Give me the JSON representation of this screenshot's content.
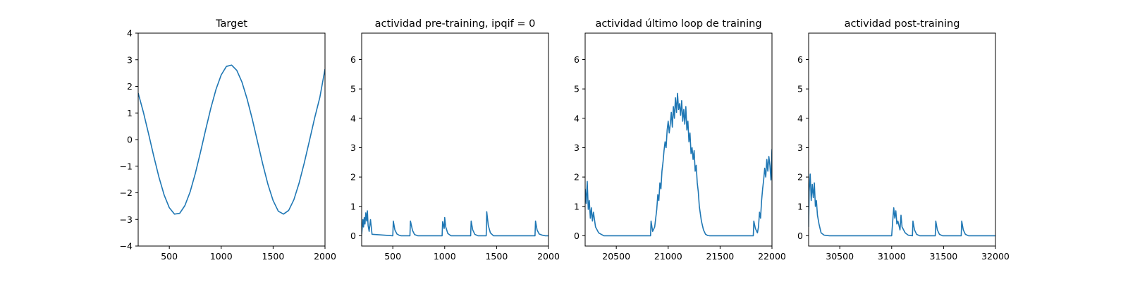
{
  "chart_data": [
    {
      "type": "line",
      "title": "Target",
      "xlabel": "",
      "ylabel": "",
      "xlim": [
        200,
        2000
      ],
      "ylim": [
        -4,
        4
      ],
      "xticks": [
        500,
        1000,
        1500,
        2000
      ],
      "yticks": [
        -4,
        -3,
        -2,
        -1,
        0,
        1,
        2,
        3,
        4
      ],
      "grid": false,
      "color": "#1f77b4",
      "x": [
        200,
        250,
        300,
        350,
        400,
        450,
        500,
        550,
        600,
        650,
        700,
        750,
        800,
        850,
        900,
        950,
        1000,
        1050,
        1100,
        1150,
        1200,
        1250,
        1300,
        1350,
        1400,
        1450,
        1500,
        1550,
        1600,
        1650,
        1700,
        1750,
        1800,
        1850,
        1900,
        1950,
        2000
      ],
      "y": [
        1.75,
        1.03,
        0.22,
        -0.62,
        -1.41,
        -2.08,
        -2.56,
        -2.8,
        -2.77,
        -2.48,
        -1.97,
        -1.28,
        -0.48,
        0.37,
        1.18,
        1.89,
        2.43,
        2.75,
        2.8,
        2.6,
        2.16,
        1.52,
        0.76,
        -0.08,
        -0.92,
        -1.68,
        -2.29,
        -2.69,
        -2.8,
        -2.66,
        -2.26,
        -1.64,
        -0.88,
        -0.04,
        0.81,
        1.58,
        2.65
      ]
    },
    {
      "type": "line",
      "title": "actividad pre-training, ipqif = 0",
      "xlabel": "",
      "ylabel": "",
      "xlim": [
        200,
        2000
      ],
      "ylim": [
        -0.35,
        6.9
      ],
      "xticks": [
        500,
        1000,
        1500,
        2000
      ],
      "yticks": [
        0,
        1,
        2,
        3,
        4,
        5,
        6
      ],
      "grid": false,
      "color": "#1f77b4",
      "x": [
        200,
        212,
        218,
        225,
        232,
        240,
        248,
        255,
        262,
        272,
        285,
        300,
        500,
        505,
        520,
        540,
        560,
        580,
        665,
        670,
        690,
        710,
        740,
        975,
        980,
        995,
        1000,
        1010,
        1030,
        1060,
        1250,
        1255,
        1270,
        1290,
        1320,
        1400,
        1405,
        1420,
        1440,
        1470,
        1870,
        1875,
        1890,
        1910,
        1940,
        1970,
        2000
      ],
      "y": [
        0.05,
        0.55,
        0.3,
        0.62,
        0.4,
        0.78,
        0.5,
        0.85,
        0.35,
        0.15,
        0.55,
        0.05,
        0.0,
        0.5,
        0.2,
        0.06,
        0.02,
        0.0,
        0.0,
        0.5,
        0.18,
        0.04,
        0.0,
        0.0,
        0.48,
        0.25,
        0.62,
        0.3,
        0.08,
        0.0,
        0.0,
        0.5,
        0.2,
        0.05,
        0.0,
        0.0,
        0.82,
        0.35,
        0.1,
        0.0,
        0.0,
        0.5,
        0.2,
        0.06,
        0.02,
        0.0,
        0.0
      ]
    },
    {
      "type": "line",
      "title": "actividad último loop de training",
      "xlabel": "",
      "ylabel": "",
      "xlim": [
        20200,
        22000
      ],
      "ylim": [
        -0.35,
        6.9
      ],
      "xticks": [
        20500,
        21000,
        21500,
        22000
      ],
      "yticks": [
        0,
        1,
        2,
        3,
        4,
        5,
        6
      ],
      "grid": false,
      "color": "#1f77b4",
      "x": [
        20200,
        20210,
        20220,
        20230,
        20240,
        20250,
        20260,
        20270,
        20280,
        20300,
        20330,
        20380,
        20830,
        20835,
        20850,
        20870,
        20880,
        20890,
        20900,
        20910,
        20920,
        20930,
        20940,
        20950,
        20960,
        20970,
        20980,
        20990,
        21000,
        21010,
        21020,
        21030,
        21040,
        21050,
        21060,
        21070,
        21080,
        21090,
        21100,
        21110,
        21120,
        21130,
        21140,
        21150,
        21160,
        21170,
        21180,
        21190,
        21200,
        21210,
        21220,
        21230,
        21240,
        21250,
        21260,
        21270,
        21280,
        21290,
        21300,
        21320,
        21340,
        21360,
        21380,
        21400,
        21820,
        21825,
        21840,
        21860,
        21870,
        21880,
        21890,
        21900,
        21910,
        21920,
        21930,
        21940,
        21950,
        21960,
        21970,
        21980,
        21990,
        22000
      ],
      "y": [
        1.6,
        1.1,
        1.85,
        0.9,
        1.2,
        0.6,
        0.95,
        0.5,
        0.8,
        0.3,
        0.1,
        0.0,
        0.0,
        0.5,
        0.15,
        0.3,
        0.6,
        0.9,
        1.4,
        1.2,
        1.8,
        1.6,
        2.2,
        2.5,
        2.9,
        3.2,
        3.0,
        3.6,
        3.9,
        3.5,
        3.8,
        4.2,
        3.7,
        4.4,
        4.0,
        4.7,
        4.2,
        4.85,
        4.3,
        4.5,
        4.1,
        4.6,
        3.9,
        4.3,
        3.8,
        4.4,
        3.6,
        3.9,
        3.2,
        3.5,
        2.8,
        3.0,
        2.6,
        2.9,
        2.2,
        2.4,
        1.8,
        1.5,
        1.0,
        0.5,
        0.2,
        0.05,
        0.01,
        0.0,
        0.0,
        0.5,
        0.25,
        0.1,
        0.3,
        0.8,
        0.6,
        1.2,
        1.6,
        1.9,
        2.3,
        2.0,
        2.6,
        2.2,
        2.7,
        2.4,
        1.9,
        2.95
      ]
    },
    {
      "type": "line",
      "title": "actividad post-training",
      "xlabel": "",
      "ylabel": "",
      "xlim": [
        30200,
        32000
      ],
      "ylim": [
        -0.35,
        6.9
      ],
      "xticks": [
        30500,
        31000,
        31500,
        32000
      ],
      "yticks": [
        0,
        1,
        2,
        3,
        4,
        5,
        6
      ],
      "grid": false,
      "color": "#1f77b4",
      "x": [
        30200,
        30205,
        30215,
        30225,
        30235,
        30245,
        30255,
        30265,
        30275,
        30285,
        30300,
        30320,
        30350,
        30400,
        31000,
        31010,
        31020,
        31030,
        31040,
        31050,
        31060,
        31080,
        31090,
        31100,
        31130,
        31160,
        31200,
        31205,
        31220,
        31240,
        31270,
        31420,
        31425,
        31440,
        31460,
        31490,
        31670,
        31675,
        31690,
        31710,
        31740,
        31800,
        32000
      ],
      "y": [
        0.3,
        1.5,
        2.1,
        1.2,
        1.75,
        1.3,
        1.8,
        1.0,
        1.2,
        0.7,
        0.4,
        0.1,
        0.02,
        0.0,
        0.0,
        0.5,
        0.95,
        0.6,
        0.85,
        0.4,
        0.5,
        0.2,
        0.7,
        0.3,
        0.1,
        0.02,
        0.0,
        0.5,
        0.2,
        0.05,
        0.0,
        0.0,
        0.5,
        0.2,
        0.05,
        0.0,
        0.0,
        0.5,
        0.2,
        0.05,
        0.0,
        0.0,
        0.0
      ]
    }
  ]
}
